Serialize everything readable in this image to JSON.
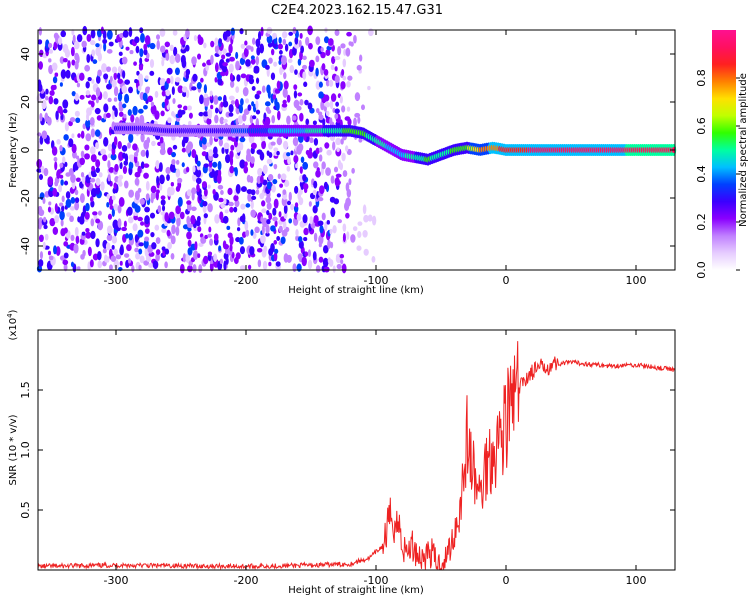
{
  "title": "C2E4.2023.162.15.47.G31",
  "chart_data": [
    {
      "type": "heatmap",
      "xlabel": "Height of straight line (km)",
      "ylabel": "Frequency (Hz)",
      "xlim": [
        -360,
        130
      ],
      "ylim": [
        -50,
        50
      ],
      "xticks": [
        -300,
        -200,
        -100,
        0,
        100
      ],
      "yticks": [
        -40,
        -20,
        0,
        20,
        40
      ],
      "colorbar": {
        "label": "Normalized spectral amplitude",
        "range": [
          0,
          1
        ],
        "ticks": [
          0.0,
          0.2,
          0.4,
          0.6,
          0.8
        ],
        "colors": [
          "#ffffff",
          "#e6ccff",
          "#c080ff",
          "#8a00ff",
          "#3a00ff",
          "#0040ff",
          "#00c0ff",
          "#00ffa0",
          "#30ff00",
          "#c0ff00",
          "#ffe000",
          "#ff8000",
          "#ff2020",
          "#ff1060",
          "#ff1090"
        ]
      },
      "ridge": {
        "x": [
          -300,
          -280,
          -260,
          -220,
          -200,
          -180,
          -160,
          -140,
          -120,
          -110,
          -100,
          -90,
          -80,
          -70,
          -60,
          -50,
          -40,
          -30,
          -20,
          -10,
          0,
          20,
          50,
          100,
          130
        ],
        "y": [
          9,
          9,
          8,
          8,
          8,
          8,
          8,
          8,
          8,
          7,
          4,
          1,
          -2,
          -3,
          -4,
          -2,
          0,
          1,
          0,
          1,
          0,
          0,
          0,
          0,
          0
        ],
        "amplitude": [
          0.25,
          0.3,
          0.3,
          0.3,
          0.35,
          0.4,
          0.45,
          0.5,
          0.55,
          0.55,
          0.5,
          0.45,
          0.45,
          0.5,
          0.55,
          0.5,
          0.55,
          0.6,
          0.75,
          0.8,
          0.85,
          0.9,
          0.92,
          0.93,
          0.93
        ]
      }
    },
    {
      "type": "line",
      "xlabel": "Height of straight line (km)",
      "ylabel": "SNR (10 * v/v)",
      "y_multiplier": "(x10",
      "y_multiplier_exp": "4",
      "y_multiplier_close": ")",
      "xlim": [
        -360,
        130
      ],
      "ylim": [
        0,
        2.0
      ],
      "xticks": [
        -300,
        -200,
        -100,
        0,
        100
      ],
      "yticks": [
        0.5,
        1.0,
        1.5
      ],
      "series": [
        {
          "color": "#ee2222",
          "x": [
            -360,
            -300,
            -200,
            -150,
            -120,
            -105,
            -95,
            -88,
            -82,
            -78,
            -72,
            -65,
            -58,
            -52,
            -46,
            -40,
            -35,
            -30,
            -25,
            -20,
            -15,
            -10,
            -5,
            0,
            5,
            10,
            15,
            20,
            30,
            40,
            50,
            60,
            80,
            100,
            120,
            130
          ],
          "y": [
            0.03,
            0.04,
            0.03,
            0.04,
            0.05,
            0.1,
            0.2,
            0.45,
            0.35,
            0.15,
            0.2,
            0.1,
            0.15,
            0.05,
            0.1,
            0.3,
            0.55,
            1.1,
            0.8,
            0.6,
            0.9,
            1.0,
            1.1,
            1.25,
            1.4,
            1.5,
            1.6,
            1.65,
            1.7,
            1.72,
            1.73,
            1.72,
            1.7,
            1.71,
            1.68,
            1.67
          ]
        }
      ]
    }
  ]
}
